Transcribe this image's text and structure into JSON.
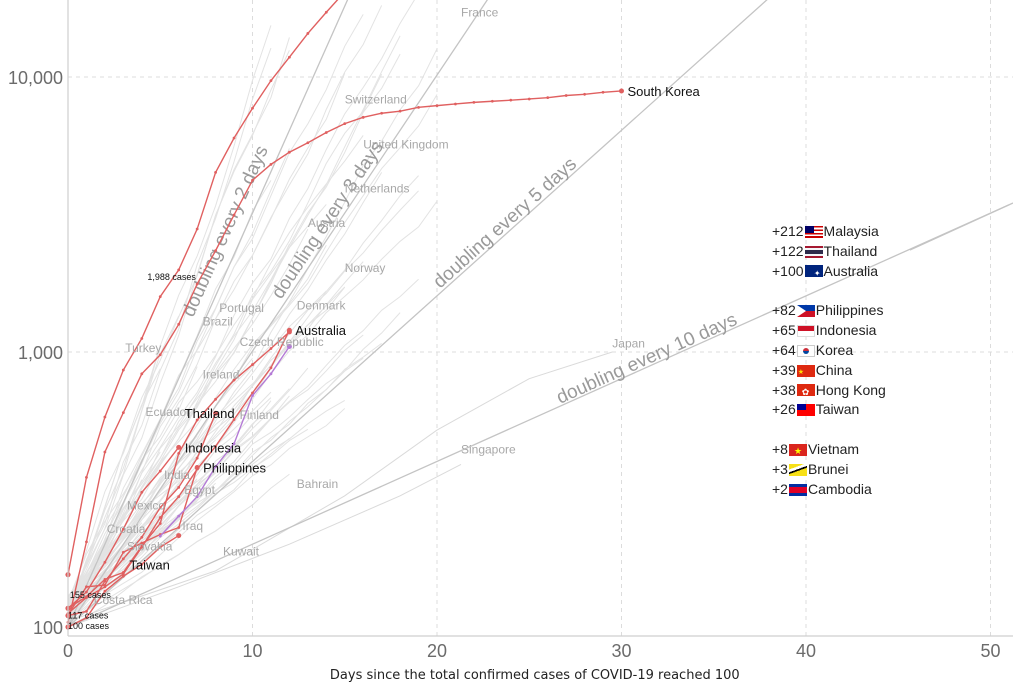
{
  "chart_data": {
    "type": "line",
    "title": "",
    "xlabel": "Days since the total confirmed cases of COVID-19 reached 100",
    "ylabel": "",
    "yscale": "log",
    "xlim": [
      0,
      51
    ],
    "ylim": [
      100,
      21000
    ],
    "grid": true,
    "x_ticks": [
      "0",
      "10",
      "20",
      "30",
      "40",
      "50"
    ],
    "y_ticks": [
      "100",
      "1,000",
      "10,000"
    ],
    "highlighted_series": [
      {
        "name": "South Korea",
        "color": "#e06060",
        "points": [
          [
            0,
            104
          ],
          [
            1,
            204
          ],
          [
            2,
            433
          ],
          [
            3,
            602
          ],
          [
            4,
            833
          ],
          [
            5,
            977
          ],
          [
            6,
            1261
          ],
          [
            7,
            1766
          ],
          [
            8,
            2337
          ],
          [
            9,
            3150
          ],
          [
            10,
            4212
          ],
          [
            11,
            4812
          ],
          [
            12,
            5328
          ],
          [
            13,
            5766
          ],
          [
            14,
            6284
          ],
          [
            15,
            6767
          ],
          [
            16,
            7134
          ],
          [
            17,
            7382
          ],
          [
            18,
            7513
          ],
          [
            19,
            7755
          ],
          [
            20,
            7869
          ],
          [
            21,
            7979
          ],
          [
            22,
            8086
          ],
          [
            23,
            8162
          ],
          [
            24,
            8236
          ],
          [
            25,
            8320
          ],
          [
            26,
            8413
          ],
          [
            27,
            8565
          ],
          [
            28,
            8652
          ],
          [
            29,
            8799
          ],
          [
            30,
            8897
          ]
        ]
      },
      {
        "name": "Australia",
        "color": "#e06060",
        "points": [
          [
            0,
            112
          ],
          [
            1,
            128
          ],
          [
            2,
            140
          ],
          [
            3,
            156
          ],
          [
            4,
            195
          ],
          [
            5,
            250
          ],
          [
            6,
            298
          ],
          [
            7,
            375
          ],
          [
            8,
            454
          ],
          [
            9,
            568
          ],
          [
            10,
            710
          ],
          [
            11,
            876
          ],
          [
            12,
            1200
          ]
        ]
      },
      {
        "name": "Thailand",
        "color": "#e06060",
        "points": [
          [
            0,
            110
          ],
          [
            1,
            114
          ],
          [
            2,
            147
          ],
          [
            3,
            177
          ],
          [
            4,
            212
          ],
          [
            5,
            272
          ],
          [
            6,
            322
          ],
          [
            7,
            411
          ],
          [
            8,
            599
          ]
        ]
      },
      {
        "name": "Indonesia",
        "color": "#e06060",
        "points": [
          [
            0,
            117
          ],
          [
            1,
            134
          ],
          [
            2,
            172
          ],
          [
            3,
            227
          ],
          [
            4,
            309
          ],
          [
            5,
            369
          ],
          [
            6,
            450
          ]
        ]
      },
      {
        "name": "Philippines",
        "color": "#e06060",
        "points": [
          [
            0,
            111
          ],
          [
            1,
            140
          ],
          [
            2,
            142
          ],
          [
            3,
            187
          ],
          [
            4,
            202
          ],
          [
            5,
            217
          ],
          [
            6,
            230
          ],
          [
            7,
            380
          ]
        ]
      },
      {
        "name": "Taiwan",
        "color": "#e06060",
        "points": [
          [
            0,
            100
          ],
          [
            1,
            108
          ],
          [
            2,
            135
          ],
          [
            3,
            153
          ],
          [
            4,
            169
          ],
          [
            5,
            195
          ],
          [
            6,
            215
          ]
        ]
      },
      {
        "name": "Malaysia",
        "color": "#e06060",
        "points": [
          [
            0,
            117
          ],
          [
            1,
            129
          ],
          [
            2,
            149
          ],
          [
            3,
            158
          ],
          [
            4,
            197
          ],
          [
            5,
            238
          ],
          [
            6,
            428
          ],
          [
            7,
            566
          ],
          [
            8,
            673
          ],
          [
            9,
            790
          ],
          [
            10,
            900
          ],
          [
            11,
            1030
          ],
          [
            12,
            1183
          ]
        ]
      },
      {
        "name": "China",
        "color": "#e06060",
        "points": [
          [
            0,
            155
          ],
          [
            1,
            350
          ],
          [
            2,
            580
          ],
          [
            3,
            860
          ],
          [
            4,
            1120
          ],
          [
            5,
            1590
          ],
          [
            6,
            1988
          ],
          [
            7,
            2800
          ],
          [
            8,
            4500
          ],
          [
            9,
            6000
          ],
          [
            10,
            7700
          ],
          [
            11,
            9700
          ],
          [
            12,
            11800
          ],
          [
            13,
            14400
          ],
          [
            14,
            17200
          ],
          [
            15,
            20400
          ]
        ]
      },
      {
        "name": "Czech Republic",
        "color": "#b47ad6",
        "points": [
          [
            5,
            214
          ],
          [
            6,
            253
          ],
          [
            7,
            298
          ],
          [
            8,
            383
          ],
          [
            9,
            464
          ],
          [
            10,
            694
          ],
          [
            11,
            833
          ],
          [
            12,
            1047
          ]
        ]
      }
    ],
    "guide_lines": [
      {
        "label": "doubling every 2 days",
        "days": 2
      },
      {
        "label": "doubling every 3 days",
        "days": 3
      },
      {
        "label": "doubling every 5 days",
        "days": 5
      },
      {
        "label": "doubling every 10 days",
        "days": 10
      }
    ],
    "labels_highlighted": [
      {
        "text": "South Korea",
        "x": 30,
        "y": 8897
      },
      {
        "text": "Australia",
        "x": 12,
        "y": 1200
      },
      {
        "text": "Thailand",
        "x": 6,
        "y": 600
      },
      {
        "text": "Indonesia",
        "x": 6,
        "y": 450
      },
      {
        "text": "Philippines",
        "x": 7,
        "y": 380
      },
      {
        "text": "Taiwan",
        "x": 3,
        "y": 169
      }
    ],
    "labels_gray": [
      {
        "text": "France",
        "x": 21.3,
        "y": 16600
      },
      {
        "text": "Switzerland",
        "x": 15,
        "y": 8000
      },
      {
        "text": "United Kingdom",
        "x": 16,
        "y": 5500
      },
      {
        "text": "Netherlands",
        "x": 15,
        "y": 3800
      },
      {
        "text": "Austria",
        "x": 13,
        "y": 2850
      },
      {
        "text": "Norway",
        "x": 15,
        "y": 1950
      },
      {
        "text": "Denmark",
        "x": 12.4,
        "y": 1430
      },
      {
        "text": "Portugal",
        "x": 8.2,
        "y": 1400
      },
      {
        "text": "Brazil",
        "x": 7.3,
        "y": 1250
      },
      {
        "text": "Turkey",
        "x": 3.1,
        "y": 1000
      },
      {
        "text": "Czech Republic",
        "x": 9.3,
        "y": 1050
      },
      {
        "text": "Ireland",
        "x": 7.3,
        "y": 800
      },
      {
        "text": "Ecuador",
        "x": 4.2,
        "y": 585
      },
      {
        "text": "Finland",
        "x": 9.3,
        "y": 570
      },
      {
        "text": "India",
        "x": 5.2,
        "y": 345
      },
      {
        "text": "Egypt",
        "x": 6.3,
        "y": 305
      },
      {
        "text": "Bahrain",
        "x": 12.4,
        "y": 320
      },
      {
        "text": "Mexico",
        "x": 3.2,
        "y": 268
      },
      {
        "text": "Iraq",
        "x": 6.2,
        "y": 225
      },
      {
        "text": "Croatia",
        "x": 2.1,
        "y": 220
      },
      {
        "text": "Slovakia",
        "x": 3.2,
        "y": 190
      },
      {
        "text": "Kuwait",
        "x": 8.4,
        "y": 182
      },
      {
        "text": "Costa Rica",
        "x": 1.4,
        "y": 121
      },
      {
        "text": "Singapore",
        "x": 21.3,
        "y": 427
      },
      {
        "text": "Japan",
        "x": 29.5,
        "y": 1040
      }
    ],
    "annotations": [
      {
        "text": "1,988 cases",
        "x": 4.3,
        "y": 1870
      },
      {
        "text": "155 cases",
        "x": 0.1,
        "y": 131
      },
      {
        "text": "117 cases",
        "x": 0,
        "y": 110
      },
      {
        "text": "100 cases",
        "x": 0,
        "y": 101
      }
    ]
  },
  "panel": [
    {
      "inc": "+212",
      "name": "Malaysia",
      "flag": "my"
    },
    {
      "inc": "+122",
      "name": "Thailand",
      "flag": "th"
    },
    {
      "inc": "+100",
      "name": "Australia",
      "flag": "au"
    },
    {
      "gap": true
    },
    {
      "inc": "+82",
      "name": "Philippines",
      "flag": "ph"
    },
    {
      "inc": "+65",
      "name": "Indonesia",
      "flag": "id"
    },
    {
      "inc": "+64",
      "name": "Korea",
      "flag": "kr"
    },
    {
      "inc": "+39",
      "name": "China",
      "flag": "cn"
    },
    {
      "inc": "+38",
      "name": "Hong Kong",
      "flag": "hk"
    },
    {
      "inc": "+26",
      "name": "Taiwan",
      "flag": "tw"
    },
    {
      "gap": true
    },
    {
      "inc": "+8",
      "name": "Vietnam",
      "flag": "vn"
    },
    {
      "inc": "+3",
      "name": "Brunei",
      "flag": "bn"
    },
    {
      "inc": "+2",
      "name": "Cambodia",
      "flag": "kh"
    }
  ]
}
